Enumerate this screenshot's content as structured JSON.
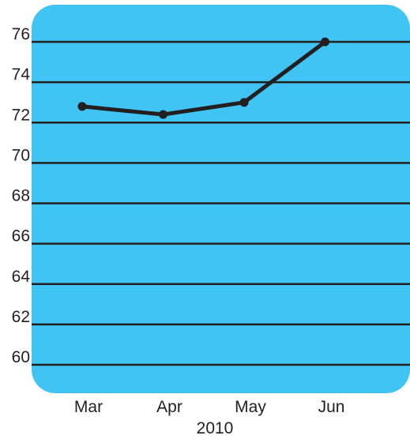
{
  "chart_data": {
    "type": "line",
    "title": "",
    "xlabel": "2010",
    "ylabel": "",
    "categories": [
      "Mar",
      "Apr",
      "May",
      "Jun"
    ],
    "series": [
      {
        "values": [
          72.8,
          72.4,
          73.0,
          76.0
        ]
      }
    ],
    "ylim": [
      60,
      76
    ],
    "yticks": [
      60,
      62,
      64,
      66,
      68,
      70,
      72,
      74,
      76
    ],
    "grid": true,
    "colors": {
      "panel": "#40c4f3",
      "line": "#231f20",
      "grid": "#231f20"
    }
  }
}
